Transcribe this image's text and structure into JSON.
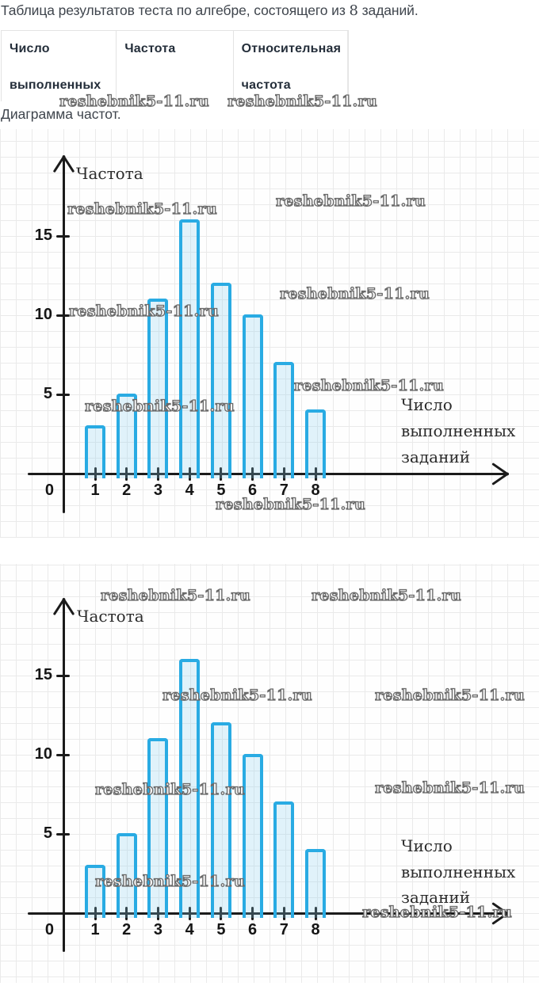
{
  "page": {
    "title_prefix": "Таблица результатов теста по алгебре, состоящего из ",
    "title_number": "8",
    "title_suffix": " заданий.",
    "subtitle": "Диаграмма частот."
  },
  "table": {
    "columns": [
      {
        "line1": "Число",
        "line2": "выполненных"
      },
      {
        "line1": "Частота",
        "line2": ""
      },
      {
        "line1": "Относительная",
        "line2": "частота"
      }
    ]
  },
  "watermark_text": "reshebnik5-11.ru",
  "colors": {
    "bar_border": "#29abe3",
    "bar_fill": "rgba(135,206,238,0.25)",
    "axis": "#1b1b1b",
    "grid": "#eaeaea",
    "body_text": "#3f454d",
    "table_header_text": "#242e3a",
    "watermark_outline": "#6a6a6a"
  },
  "chart_data": [
    {
      "type": "bar",
      "title": "Диаграмма частот",
      "ylabel": "Частота",
      "xlabel": "Число выполненных заданий",
      "xlabel_lines": [
        "Число",
        "выполненных",
        "заданий"
      ],
      "origin_label": "0",
      "categories": [
        "1",
        "2",
        "3",
        "4",
        "5",
        "6",
        "7",
        "8"
      ],
      "values": [
        3,
        5,
        11,
        16,
        12,
        10,
        7,
        4
      ],
      "yticks": [
        5,
        10,
        15
      ],
      "ylim": [
        0,
        18
      ],
      "grid": true,
      "legend": false
    },
    {
      "type": "bar",
      "title": "Диаграмма частот",
      "ylabel": "Частота",
      "xlabel": "Число выполненных заданий",
      "xlabel_lines": [
        "Число",
        "выполненных",
        "заданий"
      ],
      "origin_label": "0",
      "categories": [
        "1",
        "2",
        "3",
        "4",
        "5",
        "6",
        "7",
        "8"
      ],
      "values": [
        3,
        5,
        11,
        16,
        12,
        10,
        7,
        4
      ],
      "yticks": [
        5,
        10,
        15
      ],
      "ylim": [
        0,
        18
      ],
      "grid": true,
      "legend": false
    }
  ]
}
